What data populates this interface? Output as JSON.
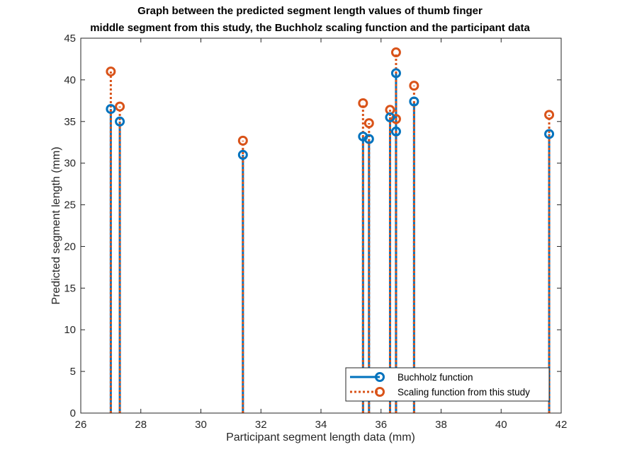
{
  "chart_data": {
    "type": "stem",
    "title": [
      "Graph between the predicted segment length values of thumb finger",
      "middle segment from this study, the Buchholz scaling function and the participant data"
    ],
    "xlabel": "Participant segment length data (mm)",
    "ylabel": "Predicted segment length (mm)",
    "xlim": [
      26,
      42
    ],
    "ylim": [
      0,
      45
    ],
    "xticks": [
      26,
      28,
      30,
      32,
      34,
      36,
      38,
      40,
      42
    ],
    "yticks": [
      0,
      5,
      10,
      15,
      20,
      25,
      30,
      35,
      40,
      45
    ],
    "legend_position": "bottom-right",
    "series": [
      {
        "name": "Buchholz function",
        "color": "#0072BD",
        "line_style": "solid",
        "marker": "circle",
        "x": [
          27.0,
          27.3,
          31.4,
          35.4,
          35.6,
          36.3,
          36.5,
          36.5,
          37.1,
          41.6
        ],
        "y": [
          36.5,
          35.0,
          31.0,
          33.2,
          32.9,
          35.5,
          40.8,
          33.8,
          37.4,
          33.5
        ]
      },
      {
        "name": "Scaling function from this study",
        "color": "#D95319",
        "line_style": "dotted",
        "marker": "circle",
        "x": [
          27.0,
          27.3,
          31.4,
          35.4,
          35.6,
          36.3,
          36.5,
          36.5,
          37.1,
          41.6
        ],
        "y": [
          41.0,
          36.8,
          32.7,
          37.2,
          34.8,
          36.4,
          43.3,
          35.3,
          39.3,
          35.8
        ]
      }
    ]
  }
}
